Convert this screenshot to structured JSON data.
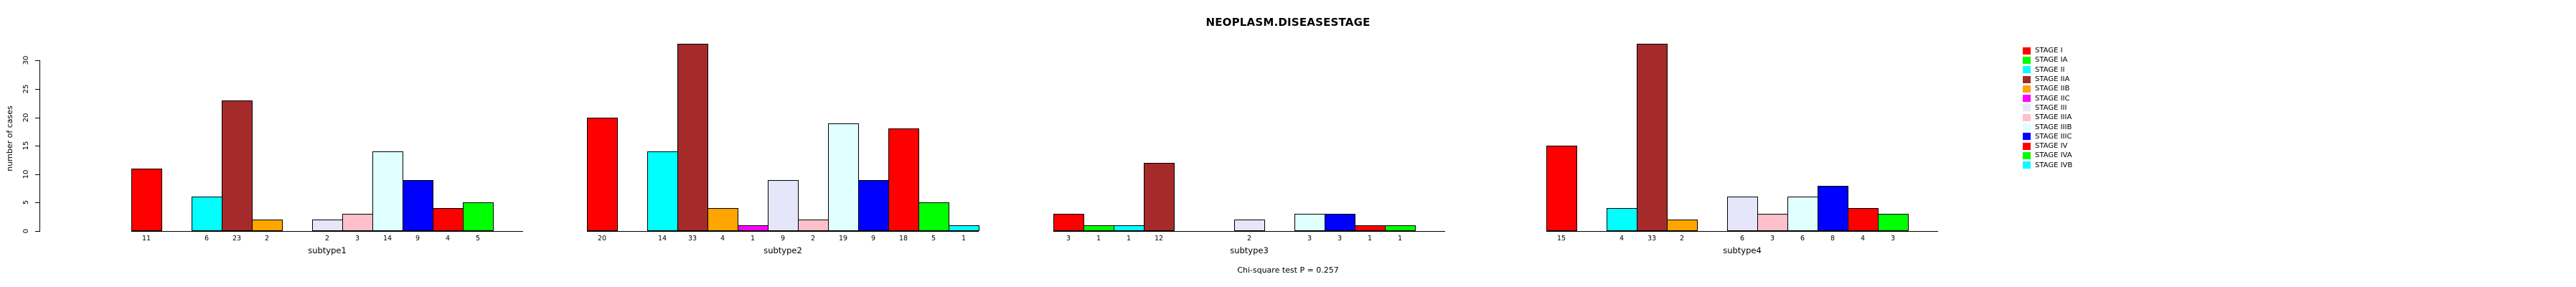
{
  "title": "NEOPLASM.DISEASESTAGE",
  "annotation": "Chi-square test P = 0.257",
  "y_axis": {
    "label": "number of cases",
    "ticks": [
      0,
      5,
      10,
      15,
      20,
      25,
      30
    ]
  },
  "chart_data": {
    "type": "bar",
    "title": "NEOPLASM.DISEASESTAGE",
    "xlabel": "",
    "ylabel": "number of cases",
    "ylim": [
      0,
      30
    ],
    "grid": false,
    "legend_position": "right",
    "annotation": "Chi-square test P = 0.257",
    "categories": [
      "subtype1",
      "subtype2",
      "subtype3",
      "subtype4"
    ],
    "stages": [
      "STAGE I",
      "STAGE IA",
      "STAGE II",
      "STAGE IIA",
      "STAGE IIB",
      "STAGE IIC",
      "STAGE III",
      "STAGE IIIA",
      "STAGE IIIB",
      "STAGE IIIC",
      "STAGE IV",
      "STAGE IVA",
      "STAGE IVB"
    ],
    "colors": [
      "#FF0000",
      "#00FF00",
      "#00FFFF",
      "#A52A2A",
      "#FFA500",
      "#FF00FF",
      "#E6E6FA",
      "#FFC0CB",
      "#E0FFFF",
      "#0000FF",
      "#FF0000",
      "#00FF00",
      "#00FFFF"
    ],
    "series": [
      {
        "name": "subtype1",
        "values": [
          11,
          0,
          6,
          23,
          2,
          0,
          2,
          3,
          14,
          9,
          4,
          5,
          0
        ]
      },
      {
        "name": "subtype2",
        "values": [
          20,
          0,
          14,
          33,
          4,
          1,
          9,
          2,
          19,
          9,
          18,
          5,
          1
        ]
      },
      {
        "name": "subtype3",
        "values": [
          3,
          1,
          1,
          12,
          0,
          0,
          2,
          0,
          3,
          3,
          1,
          1,
          0
        ]
      },
      {
        "name": "subtype4",
        "values": [
          15,
          0,
          4,
          33,
          2,
          0,
          6,
          3,
          6,
          8,
          4,
          3,
          0
        ]
      }
    ]
  }
}
